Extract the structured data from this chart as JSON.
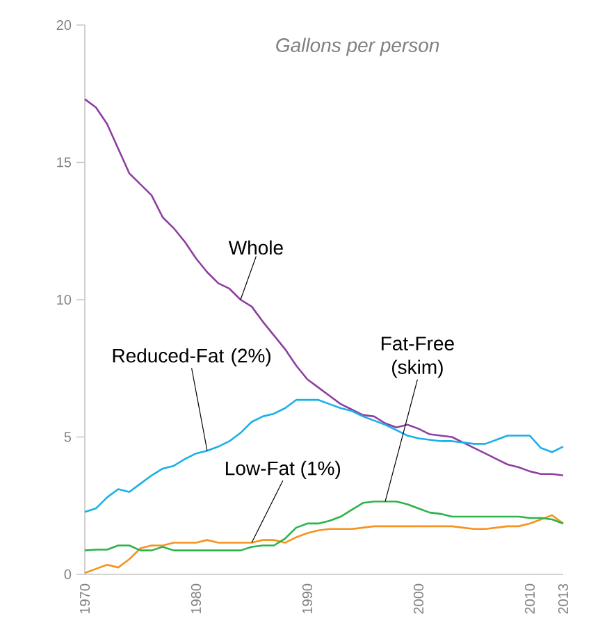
{
  "chart_data": {
    "type": "line",
    "title": "Gallons per person",
    "x": [
      1970,
      1971,
      1972,
      1973,
      1974,
      1975,
      1976,
      1977,
      1978,
      1979,
      1980,
      1981,
      1982,
      1983,
      1984,
      1985,
      1986,
      1987,
      1988,
      1989,
      1990,
      1991,
      1992,
      1993,
      1994,
      1995,
      1996,
      1997,
      1998,
      1999,
      2000,
      2001,
      2002,
      2003,
      2004,
      2005,
      2006,
      2007,
      2008,
      2009,
      2010,
      2011,
      2012,
      2013
    ],
    "series": [
      {
        "name": "Whole",
        "color": "#8e3fa0",
        "values": [
          17.3,
          17.0,
          16.4,
          15.5,
          14.6,
          14.2,
          13.8,
          13.0,
          12.6,
          12.1,
          11.5,
          11.0,
          10.6,
          10.4,
          10.0,
          9.75,
          9.2,
          8.7,
          8.2,
          7.6,
          7.1,
          6.8,
          6.5,
          6.2,
          6.0,
          5.8,
          5.75,
          5.5,
          5.35,
          5.45,
          5.3,
          5.1,
          5.05,
          5.0,
          4.8,
          4.6,
          4.4,
          4.2,
          4.0,
          3.9,
          3.75,
          3.65,
          3.65,
          3.6
        ]
      },
      {
        "name": "Reduced-Fat (2%)",
        "color": "#1ab0e8",
        "values": [
          2.27,
          2.4,
          2.8,
          3.1,
          3.0,
          3.3,
          3.6,
          3.85,
          3.95,
          4.2,
          4.4,
          4.5,
          4.65,
          4.85,
          5.15,
          5.55,
          5.75,
          5.85,
          6.05,
          6.35,
          6.35,
          6.35,
          6.2,
          6.05,
          5.95,
          5.75,
          5.6,
          5.45,
          5.25,
          5.05,
          4.95,
          4.9,
          4.85,
          4.85,
          4.8,
          4.75,
          4.75,
          4.9,
          5.05,
          5.05,
          5.05,
          4.6,
          4.45,
          4.65
        ]
      },
      {
        "name": "Low-Fat (1%)",
        "color": "#f7931e",
        "values": [
          0.05,
          0.2,
          0.35,
          0.25,
          0.55,
          0.95,
          1.05,
          1.05,
          1.15,
          1.15,
          1.15,
          1.25,
          1.15,
          1.15,
          1.15,
          1.15,
          1.25,
          1.25,
          1.15,
          1.35,
          1.5,
          1.6,
          1.65,
          1.65,
          1.65,
          1.7,
          1.75,
          1.75,
          1.75,
          1.75,
          1.75,
          1.75,
          1.75,
          1.75,
          1.7,
          1.65,
          1.65,
          1.7,
          1.75,
          1.75,
          1.85,
          2.0,
          2.15,
          1.85
        ]
      },
      {
        "name": "Fat-Free (skim)",
        "color": "#2cb34a",
        "values": [
          0.87,
          0.9,
          0.9,
          1.05,
          1.05,
          0.87,
          0.87,
          1.0,
          0.87,
          0.87,
          0.87,
          0.87,
          0.87,
          0.87,
          0.87,
          1.0,
          1.05,
          1.05,
          1.3,
          1.7,
          1.85,
          1.85,
          1.95,
          2.1,
          2.35,
          2.6,
          2.65,
          2.65,
          2.65,
          2.55,
          2.4,
          2.25,
          2.2,
          2.1,
          2.1,
          2.1,
          2.1,
          2.1,
          2.1,
          2.1,
          2.05,
          2.05,
          2.0,
          1.85
        ]
      }
    ],
    "xlim": [
      1970,
      2013
    ],
    "xticks": [
      1970,
      1980,
      1990,
      2000,
      2010,
      2013
    ],
    "ylim": [
      0,
      20
    ],
    "yticks": [
      0,
      5,
      10,
      15,
      20
    ],
    "grid": false,
    "legend": false,
    "marker": "none",
    "line_style": "solid"
  }
}
